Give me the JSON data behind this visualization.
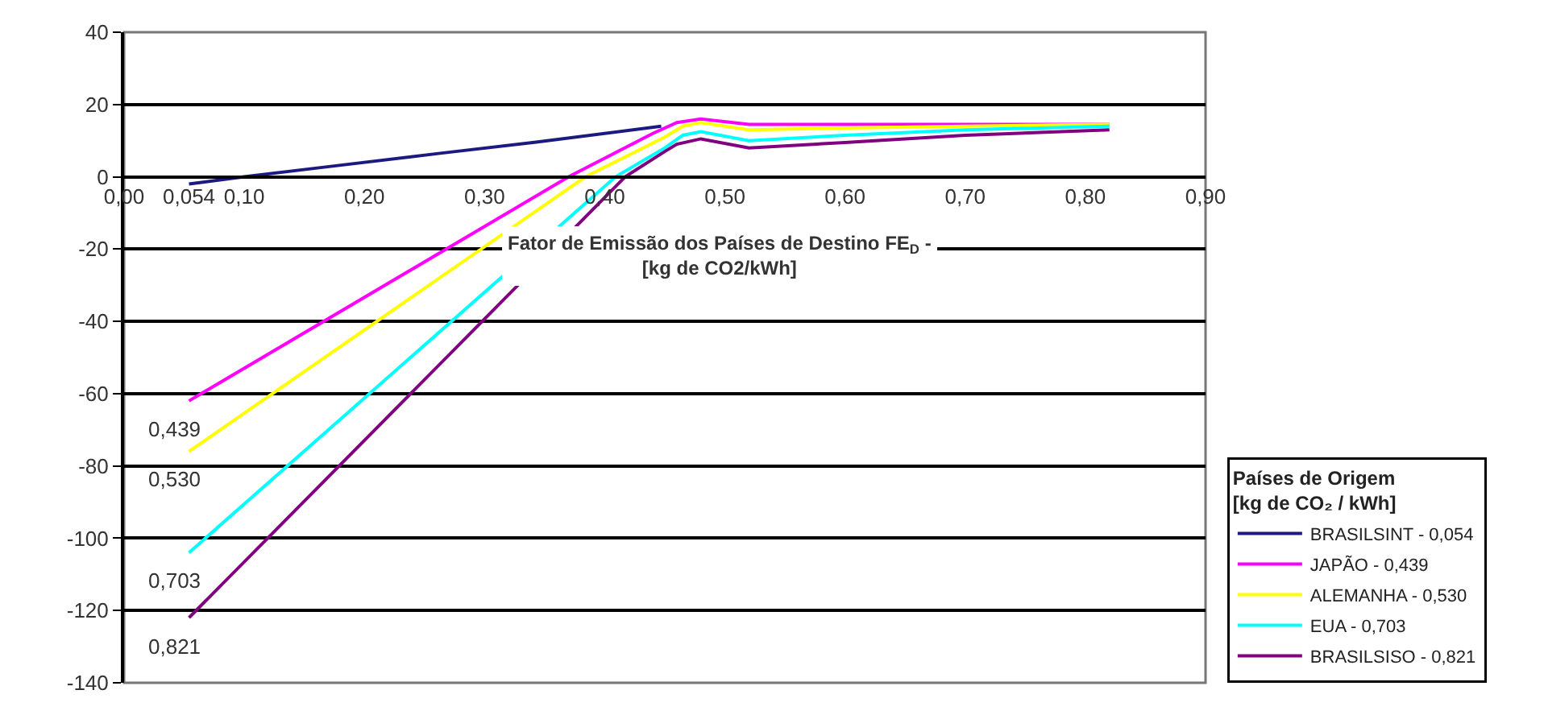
{
  "chart_data": {
    "type": "line",
    "xlabel": "Fator de Emissão dos Países de Destino FE$_{D}$ - [kg de CO2/kWh]",
    "legend_title": "Países de Origem [kg de CO₂ / kWh]",
    "xlim": [
      0,
      0.9
    ],
    "ylim": [
      -140,
      40
    ],
    "xticks": [
      {
        "value": 0,
        "label": "0,00"
      },
      {
        "value": 0.054,
        "label": "0,054"
      },
      {
        "value": 0.1,
        "label": "0,10"
      },
      {
        "value": 0.2,
        "label": "0,20"
      },
      {
        "value": 0.3,
        "label": "0,30"
      },
      {
        "value": 0.4,
        "label": "0,40"
      },
      {
        "value": 0.5,
        "label": "0,50"
      },
      {
        "value": 0.6,
        "label": "0,60"
      },
      {
        "value": 0.7,
        "label": "0,70"
      },
      {
        "value": 0.8,
        "label": "0,80"
      },
      {
        "value": 0.9,
        "label": "0,90"
      }
    ],
    "yticks": [
      -140,
      -120,
      -100,
      -80,
      -60,
      -40,
      -20,
      0,
      20,
      40
    ],
    "grid": "y",
    "legend": "right",
    "marker": "none",
    "line_style": "solid",
    "series": [
      {
        "name": "BRASILSINT - 0,054",
        "color": "#1a1a80",
        "x": [
          0.054,
          0.1,
          0.165,
          0.263,
          0.343,
          0.447
        ],
        "values": [
          -2,
          0,
          2.6,
          6.5,
          9.6,
          14
        ]
      },
      {
        "name": "JAPÃO - 0,439",
        "color": "#ff00ff",
        "x": [
          0.054,
          0.37,
          0.44,
          0.46,
          0.48,
          0.52,
          0.6,
          0.7,
          0.82
        ],
        "values": [
          -62,
          0,
          12,
          15,
          16,
          14.5,
          14.5,
          14.5,
          14.5
        ]
      },
      {
        "name": "ALEMANHA - 0,530",
        "color": "#ffff00",
        "x": [
          0.054,
          0.384,
          0.45,
          0.465,
          0.48,
          0.52,
          0.6,
          0.7,
          0.82
        ],
        "values": [
          -76,
          0,
          11,
          14,
          15,
          13,
          13.5,
          14,
          14.5
        ]
      },
      {
        "name": "EUA - 0,703",
        "color": "#00ffff",
        "x": [
          0.054,
          0.409,
          0.45,
          0.465,
          0.48,
          0.52,
          0.6,
          0.7,
          0.82
        ],
        "values": [
          -104,
          0,
          8,
          11.5,
          12.5,
          10,
          11.5,
          13,
          14
        ]
      },
      {
        "name": "BRASILSISO - 0,821",
        "color": "#800080",
        "x": [
          0.054,
          0.417,
          0.45,
          0.46,
          0.48,
          0.52,
          0.6,
          0.7,
          0.82
        ],
        "values": [
          -122,
          0,
          7,
          9,
          10.5,
          8,
          9.5,
          11.5,
          13
        ]
      }
    ],
    "annotations": [
      "0,439",
      "0,530",
      "0,703",
      "0,821"
    ]
  }
}
